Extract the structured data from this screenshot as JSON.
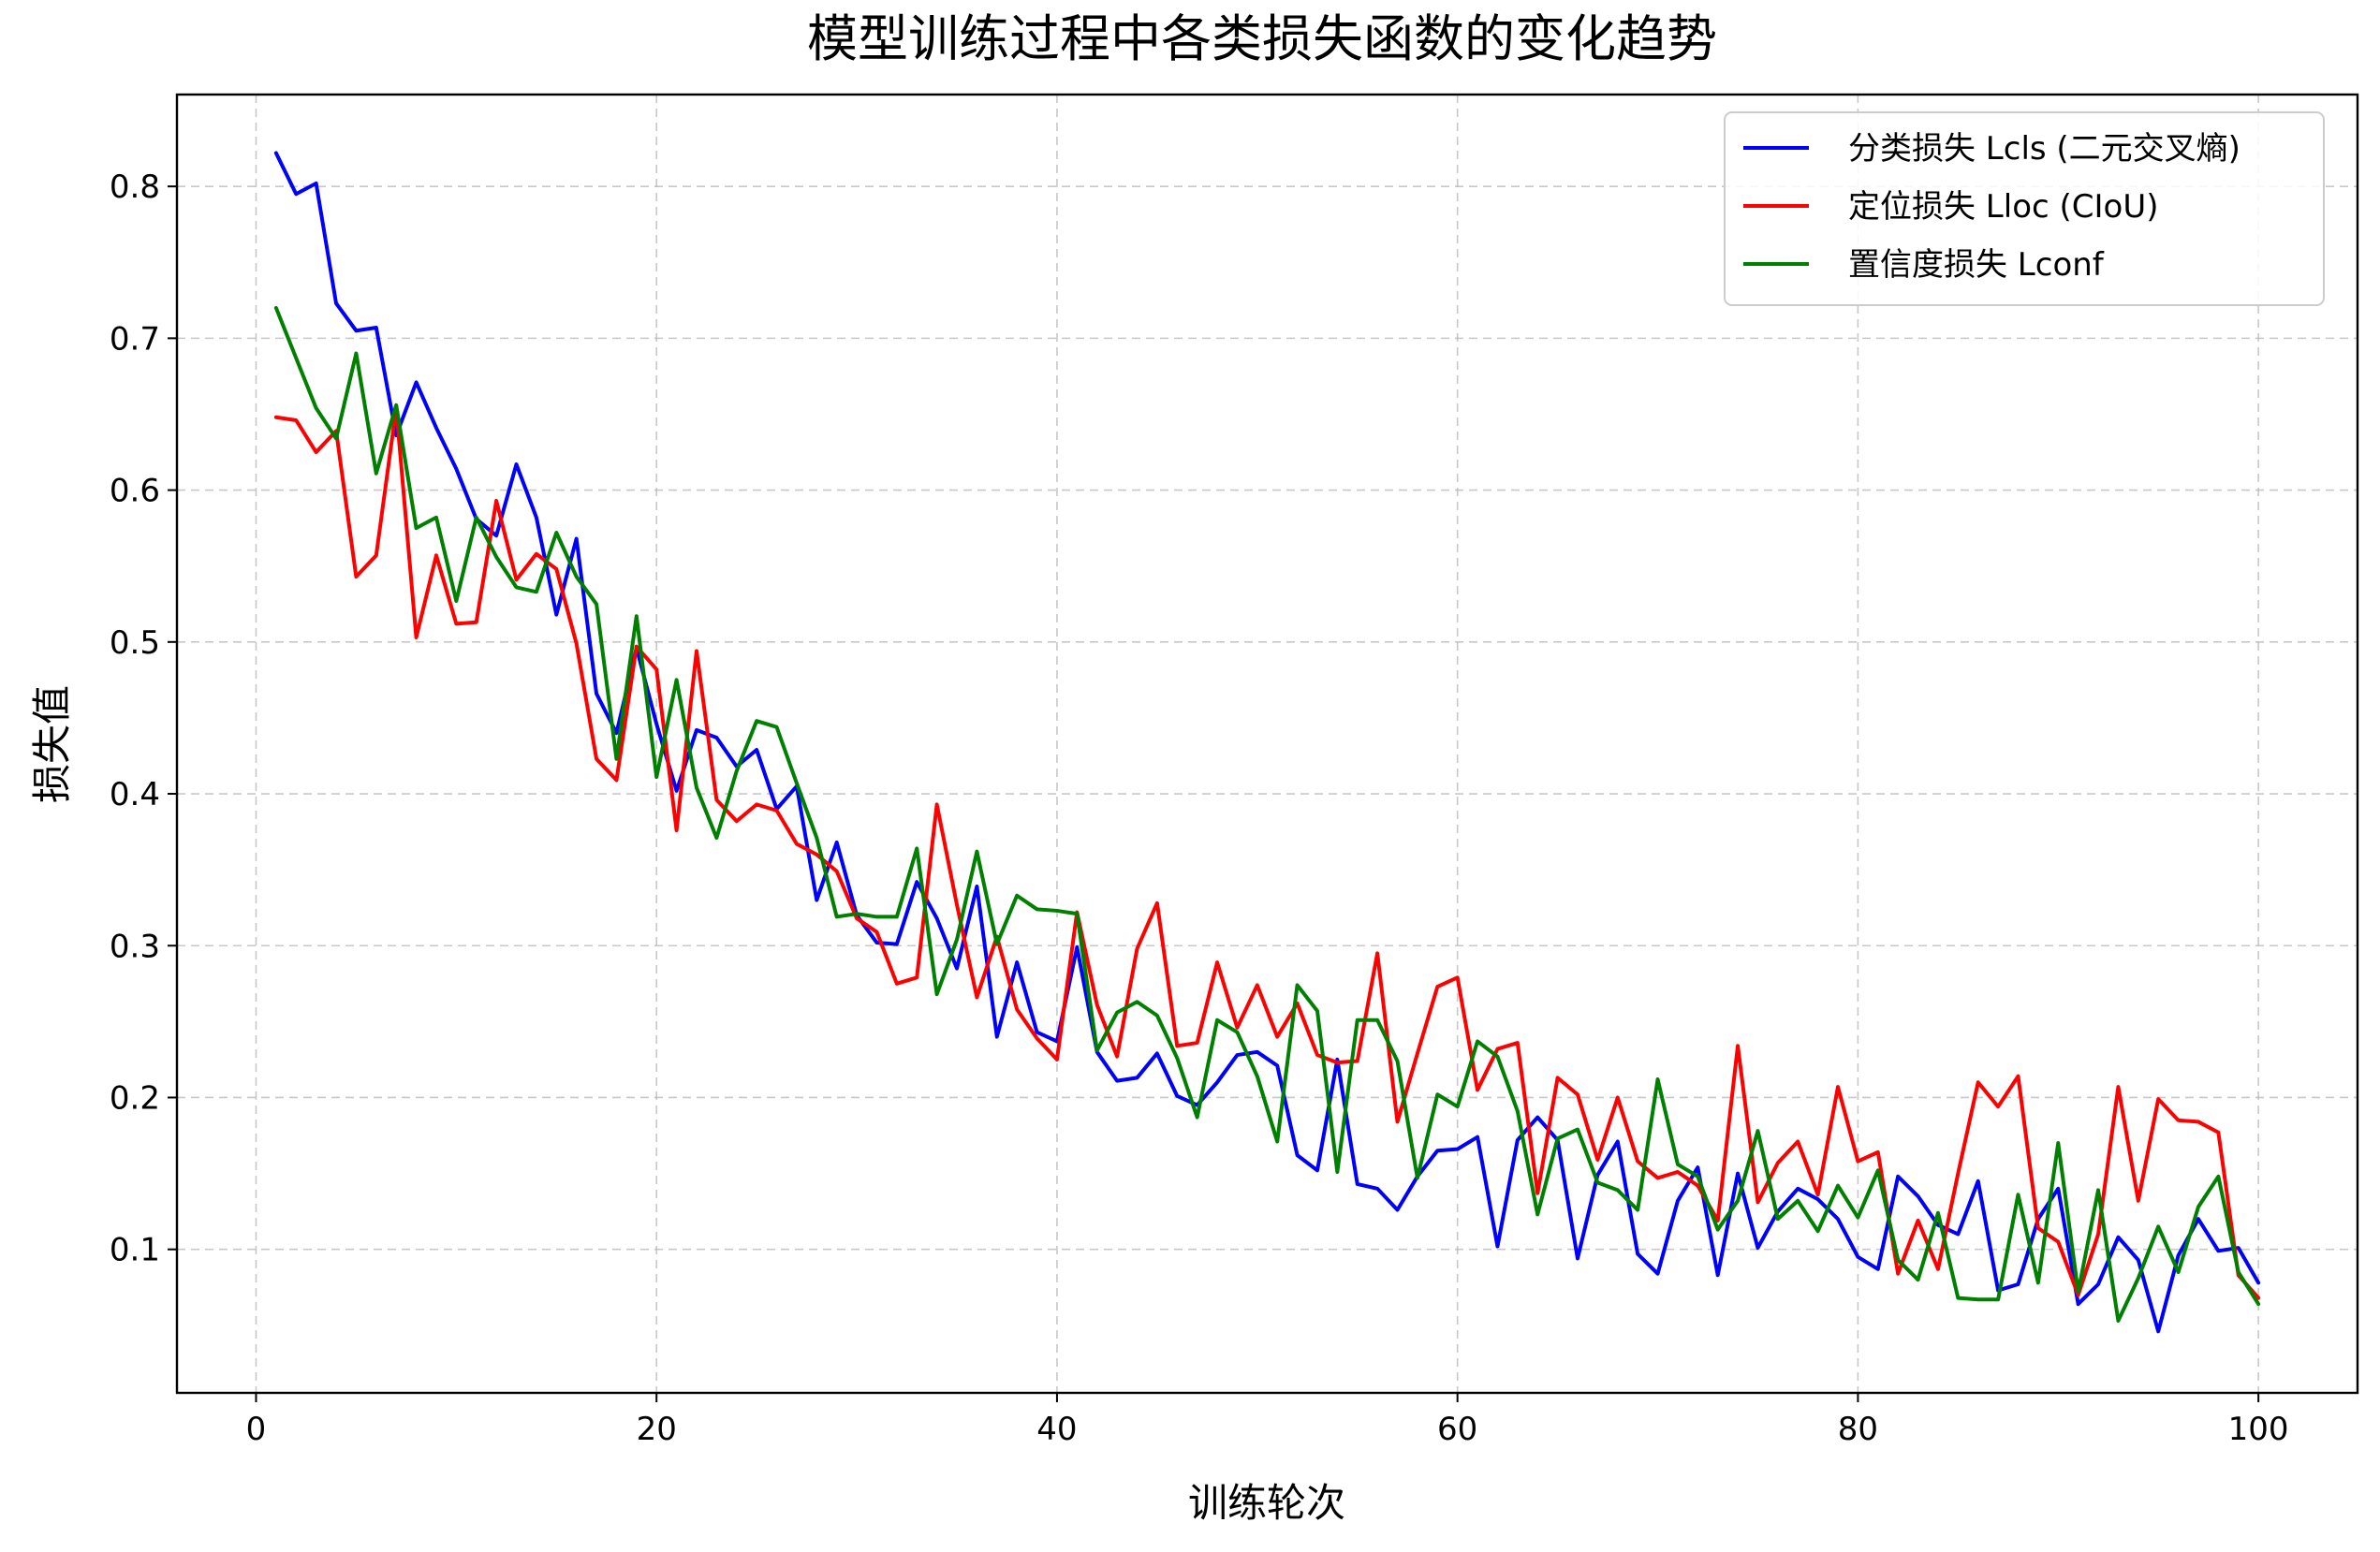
{
  "chart_data": {
    "type": "line",
    "title": "模型训练过程中各类损失函数的变化趋势",
    "xlabel": "训练轮次",
    "ylabel": "损失值",
    "xlim": [
      -3.95,
      104.95
    ],
    "ylim": [
      0.0055,
      0.8605
    ],
    "x_ticks": [
      0,
      20,
      40,
      60,
      80,
      100
    ],
    "y_ticks": [
      0.1,
      0.2,
      0.3,
      0.4,
      0.5,
      0.6,
      0.7,
      0.8
    ],
    "grid": true,
    "legend_position": "top-right",
    "x": [
      1,
      2,
      3,
      4,
      5,
      6,
      7,
      8,
      9,
      10,
      11,
      12,
      13,
      14,
      15,
      16,
      17,
      18,
      19,
      20,
      21,
      22,
      23,
      24,
      25,
      26,
      27,
      28,
      29,
      30,
      31,
      32,
      33,
      34,
      35,
      36,
      37,
      38,
      39,
      40,
      41,
      42,
      43,
      44,
      45,
      46,
      47,
      48,
      49,
      50,
      51,
      52,
      53,
      54,
      55,
      56,
      57,
      58,
      59,
      60,
      61,
      62,
      63,
      64,
      65,
      66,
      67,
      68,
      69,
      70,
      71,
      72,
      73,
      74,
      75,
      76,
      77,
      78,
      79,
      80,
      81,
      82,
      83,
      84,
      85,
      86,
      87,
      88,
      89,
      90,
      91,
      92,
      93,
      94,
      95,
      96,
      97,
      98,
      99,
      100
    ],
    "series": [
      {
        "name": "分类损失 Lcls (二元交叉熵)",
        "color": "#0000ff",
        "values": [
          0.822,
          0.795,
          0.802,
          0.723,
          0.705,
          0.707,
          0.636,
          0.671,
          0.641,
          0.614,
          0.581,
          0.57,
          0.617,
          0.582,
          0.518,
          0.568,
          0.466,
          0.44,
          0.496,
          0.446,
          0.402,
          0.442,
          0.437,
          0.418,
          0.429,
          0.39,
          0.405,
          0.33,
          0.368,
          0.32,
          0.302,
          0.301,
          0.342,
          0.318,
          0.285,
          0.339,
          0.24,
          0.289,
          0.243,
          0.237,
          0.299,
          0.23,
          0.211,
          0.213,
          0.229,
          0.201,
          0.195,
          0.21,
          0.228,
          0.23,
          0.221,
          0.162,
          0.152,
          0.225,
          0.143,
          0.14,
          0.126,
          0.148,
          0.165,
          0.166,
          0.174,
          0.102,
          0.172,
          0.187,
          0.172,
          0.094,
          0.149,
          0.171,
          0.097,
          0.084,
          0.132,
          0.154,
          0.083,
          0.15,
          0.101,
          0.125,
          0.14,
          0.133,
          0.12,
          0.095,
          0.087,
          0.148,
          0.135,
          0.116,
          0.11,
          0.145,
          0.073,
          0.077,
          0.12,
          0.14,
          0.064,
          0.077,
          0.108,
          0.093,
          0.046,
          0.096,
          0.12,
          0.099,
          0.101,
          0.078
        ]
      },
      {
        "name": "定位损失 Lloc (CIoU)",
        "color": "#ff0000",
        "values": [
          0.648,
          0.646,
          0.625,
          0.639,
          0.543,
          0.557,
          0.654,
          0.503,
          0.557,
          0.512,
          0.513,
          0.593,
          0.541,
          0.558,
          0.548,
          0.499,
          0.423,
          0.409,
          0.497,
          0.482,
          0.376,
          0.494,
          0.396,
          0.382,
          0.393,
          0.389,
          0.367,
          0.36,
          0.349,
          0.318,
          0.309,
          0.275,
          0.279,
          0.393,
          0.327,
          0.266,
          0.306,
          0.258,
          0.239,
          0.225,
          0.322,
          0.261,
          0.227,
          0.298,
          0.328,
          0.234,
          0.236,
          0.289,
          0.246,
          0.274,
          0.24,
          0.262,
          0.228,
          0.223,
          0.224,
          0.295,
          0.184,
          0.229,
          0.273,
          0.279,
          0.205,
          0.232,
          0.236,
          0.137,
          0.213,
          0.202,
          0.159,
          0.2,
          0.158,
          0.147,
          0.151,
          0.142,
          0.119,
          0.234,
          0.131,
          0.157,
          0.171,
          0.136,
          0.207,
          0.158,
          0.164,
          0.084,
          0.119,
          0.087,
          0.15,
          0.21,
          0.194,
          0.214,
          0.114,
          0.105,
          0.07,
          0.11,
          0.207,
          0.132,
          0.199,
          0.185,
          0.184,
          0.177,
          0.083,
          0.068
        ]
      },
      {
        "name": "置信度损失 Lconf",
        "color": "#008000",
        "values": [
          0.72,
          0.687,
          0.654,
          0.634,
          0.69,
          0.611,
          0.656,
          0.575,
          0.582,
          0.527,
          0.582,
          0.556,
          0.536,
          0.533,
          0.572,
          0.543,
          0.525,
          0.423,
          0.517,
          0.411,
          0.475,
          0.404,
          0.371,
          0.415,
          0.448,
          0.444,
          0.407,
          0.371,
          0.319,
          0.321,
          0.319,
          0.319,
          0.364,
          0.268,
          0.304,
          0.362,
          0.301,
          0.333,
          0.324,
          0.323,
          0.321,
          0.231,
          0.256,
          0.263,
          0.254,
          0.226,
          0.187,
          0.251,
          0.243,
          0.214,
          0.171,
          0.274,
          0.257,
          0.151,
          0.251,
          0.251,
          0.224,
          0.147,
          0.202,
          0.194,
          0.237,
          0.227,
          0.191,
          0.123,
          0.173,
          0.179,
          0.144,
          0.139,
          0.126,
          0.212,
          0.156,
          0.148,
          0.113,
          0.132,
          0.178,
          0.12,
          0.132,
          0.112,
          0.142,
          0.121,
          0.152,
          0.093,
          0.08,
          0.124,
          0.068,
          0.067,
          0.067,
          0.136,
          0.078,
          0.17,
          0.072,
          0.139,
          0.053,
          0.081,
          0.115,
          0.085,
          0.128,
          0.148,
          0.085,
          0.064
        ]
      }
    ]
  }
}
